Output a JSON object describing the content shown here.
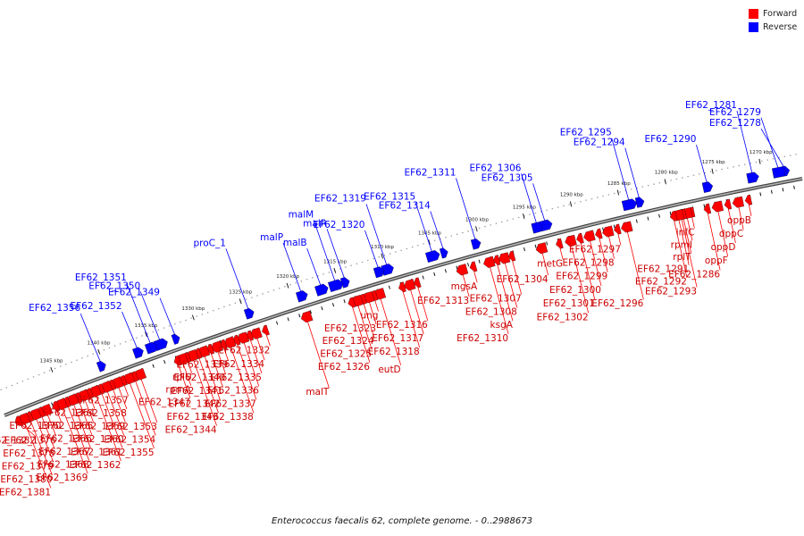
{
  "title": "Enterococcus faecalis 62, complete genome. - 0..2988673",
  "legend": [
    {
      "label": "Forward",
      "color": "#ff0000"
    },
    {
      "label": "Reverse",
      "color": "#0000ff"
    }
  ],
  "colors": {
    "forward": "#ff0000",
    "reverse": "#0000ff",
    "backbone": "#808080"
  },
  "ticks": [
    {
      "kbp": 1270,
      "label": "1270 kbp"
    },
    {
      "kbp": 1275,
      "label": "1275 kbp"
    },
    {
      "kbp": 1280,
      "label": "1280 kbp"
    },
    {
      "kbp": 1285,
      "label": "1285 kbp"
    },
    {
      "kbp": 1290,
      "label": "1290 kbp"
    },
    {
      "kbp": 1295,
      "label": "1295 kbp"
    },
    {
      "kbp": 1300,
      "label": "1300 kbp"
    },
    {
      "kbp": 1305,
      "label": "1305 kbp"
    },
    {
      "kbp": 1310,
      "label": "1310 kbp"
    },
    {
      "kbp": 1315,
      "label": "1315 kbp"
    },
    {
      "kbp": 1320,
      "label": "1320 kbp"
    },
    {
      "kbp": 1325,
      "label": "1325 kbp"
    },
    {
      "kbp": 1330,
      "label": "1330 kbp"
    },
    {
      "kbp": 1335,
      "label": "1335 kbp"
    },
    {
      "kbp": 1340,
      "label": "1340 kbp"
    },
    {
      "kbp": 1345,
      "label": "1345 kbp"
    }
  ],
  "reverse_genes": [
    {
      "name": "EF62_1278",
      "kbp": 1267.5
    },
    {
      "name": "EF62_1279",
      "kbp": 1268.2
    },
    {
      "name": "EF62_1281",
      "kbp": 1271.0
    },
    {
      "name": "EF62_1290",
      "kbp": 1275.8
    },
    {
      "name": "EF62_1294",
      "kbp": 1283.0
    },
    {
      "name": "EF62_1295",
      "kbp": 1284.1
    },
    {
      "name": "EF62_1305",
      "kbp": 1293.0
    },
    {
      "name": "EF62_1306",
      "kbp": 1293.9
    },
    {
      "name": "EF62_1311",
      "kbp": 1300.4
    },
    {
      "name": "EF62_1314",
      "kbp": 1303.8
    },
    {
      "name": "EF62_1315",
      "kbp": 1305.0
    },
    {
      "name": "EF62_1319",
      "kbp": 1309.8
    },
    {
      "name": "EF62_1320",
      "kbp": 1310.7
    },
    {
      "name": "malR",
      "kbp": 1314.3
    },
    {
      "name": "malM",
      "kbp": 1315.3
    },
    {
      "name": "malB",
      "kbp": 1316.8
    },
    {
      "name": "malP",
      "kbp": 1318.9
    },
    {
      "name": "proC_1",
      "kbp": 1324.5
    },
    {
      "name": "EF62_1349",
      "kbp": 1332.3
    },
    {
      "name": "EF62_1350",
      "kbp": 1333.9
    },
    {
      "name": "EF62_1351",
      "kbp": 1334.9
    },
    {
      "name": "EF62_1352",
      "kbp": 1336.3
    },
    {
      "name": "EF62_1356",
      "kbp": 1340.2
    }
  ],
  "forward_genes": [
    {
      "name": "oppB",
      "kbp": 1272.0
    },
    {
      "name": "dppC",
      "kbp": 1273.1
    },
    {
      "name": "oppD",
      "kbp": 1274.2
    },
    {
      "name": "oppF",
      "kbp": 1275.3
    },
    {
      "name": "EF62_1286",
      "kbp": 1276.4
    },
    {
      "name": "EF62_1293",
      "kbp": 1279.2
    },
    {
      "name": "infC",
      "kbp": 1278.1
    },
    {
      "name": "rpmI",
      "kbp": 1278.6
    },
    {
      "name": "rplT",
      "kbp": 1279.0
    },
    {
      "name": "EF62_1291",
      "kbp": 1279.5
    },
    {
      "name": "EF62_1292",
      "kbp": 1280.0
    },
    {
      "name": "EF62_1296",
      "kbp": 1285.0
    },
    {
      "name": "EF62_1297",
      "kbp": 1286.0
    },
    {
      "name": "EF62_1298",
      "kbp": 1287.0
    },
    {
      "name": "EF62_1299",
      "kbp": 1288.0
    },
    {
      "name": "EF62_1300",
      "kbp": 1289.0
    },
    {
      "name": "EF62_1301",
      "kbp": 1290.0
    },
    {
      "name": "EF62_1302",
      "kbp": 1291.0
    },
    {
      "name": "metG",
      "kbp": 1292.2
    },
    {
      "name": "EF62_1304",
      "kbp": 1294.1
    },
    {
      "name": "EF62_1307",
      "kbp": 1297.3
    },
    {
      "name": "EF62_1308",
      "kbp": 1298.1
    },
    {
      "name": "ksgA",
      "kbp": 1298.9
    },
    {
      "name": "EF62_1310",
      "kbp": 1299.7
    },
    {
      "name": "mgsA",
      "kbp": 1301.4
    },
    {
      "name": "EF62_1313",
      "kbp": 1302.6
    },
    {
      "name": "EF62_1316",
      "kbp": 1307.4
    },
    {
      "name": "EF62_1317",
      "kbp": 1308.2
    },
    {
      "name": "EF62_1318",
      "kbp": 1309.0
    },
    {
      "name": "eutD",
      "kbp": 1311.4
    },
    {
      "name": "ung",
      "kbp": 1312.0
    },
    {
      "name": "EF62_1323",
      "kbp": 1312.6
    },
    {
      "name": "EF62_1324",
      "kbp": 1313.2
    },
    {
      "name": "EF62_1325",
      "kbp": 1313.8
    },
    {
      "name": "EF62_1326",
      "kbp": 1314.4
    },
    {
      "name": "malT",
      "kbp": 1319.2
    },
    {
      "name": "EF62_1332",
      "kbp": 1323.6
    },
    {
      "name": "EF62_1334",
      "kbp": 1324.6
    },
    {
      "name": "EF62_1335",
      "kbp": 1325.3
    },
    {
      "name": "EF62_1336",
      "kbp": 1326.0
    },
    {
      "name": "EF62_1337",
      "kbp": 1326.7
    },
    {
      "name": "EF62_1338",
      "kbp": 1327.4
    },
    {
      "name": "EF62_1339",
      "kbp": 1328.1
    },
    {
      "name": "EF62_1340",
      "kbp": 1328.8
    },
    {
      "name": "EF62_1341",
      "kbp": 1329.5
    },
    {
      "name": "EF62_1342",
      "kbp": 1330.2
    },
    {
      "name": "EF62_1343",
      "kbp": 1330.8
    },
    {
      "name": "EF62_1344",
      "kbp": 1331.4
    },
    {
      "name": "rplU",
      "kbp": 1332.0
    },
    {
      "name": "rpmA",
      "kbp": 1332.5
    },
    {
      "name": "EF62_1347",
      "kbp": 1333.0
    },
    {
      "name": "EF62_1353",
      "kbp": 1337.0
    },
    {
      "name": "EF62_1354",
      "kbp": 1337.6
    },
    {
      "name": "EF62_1355",
      "kbp": 1338.2
    },
    {
      "name": "EF62_1357",
      "kbp": 1338.8
    },
    {
      "name": "EF62_1358",
      "kbp": 1339.4
    },
    {
      "name": "EF62_1359",
      "kbp": 1340.0
    },
    {
      "name": "EF62_1360",
      "kbp": 1340.6
    },
    {
      "name": "EF62_1361",
      "kbp": 1341.2
    },
    {
      "name": "EF62_1362",
      "kbp": 1341.8
    },
    {
      "name": "EF62_1364",
      "kbp": 1342.4
    },
    {
      "name": "EF62_1365",
      "kbp": 1343.0
    },
    {
      "name": "EF62_1366",
      "kbp": 1343.6
    },
    {
      "name": "EF62_1367",
      "kbp": 1344.2
    },
    {
      "name": "EF62_1368",
      "kbp": 1344.8
    },
    {
      "name": "EF62_1369",
      "kbp": 1345.4
    },
    {
      "name": "EF62_1370",
      "kbp": 1346.0
    },
    {
      "name": "EF62_1376",
      "kbp": 1347.0
    },
    {
      "name": "EF62_1378",
      "kbp": 1347.6
    },
    {
      "name": "EF62_1379",
      "kbp": 1348.2
    },
    {
      "name": "EF62_1380",
      "kbp": 1348.8
    },
    {
      "name": "EF62_1381",
      "kbp": 1349.4
    },
    {
      "name": "EF62_1382",
      "kbp": 1350.0
    }
  ]
}
